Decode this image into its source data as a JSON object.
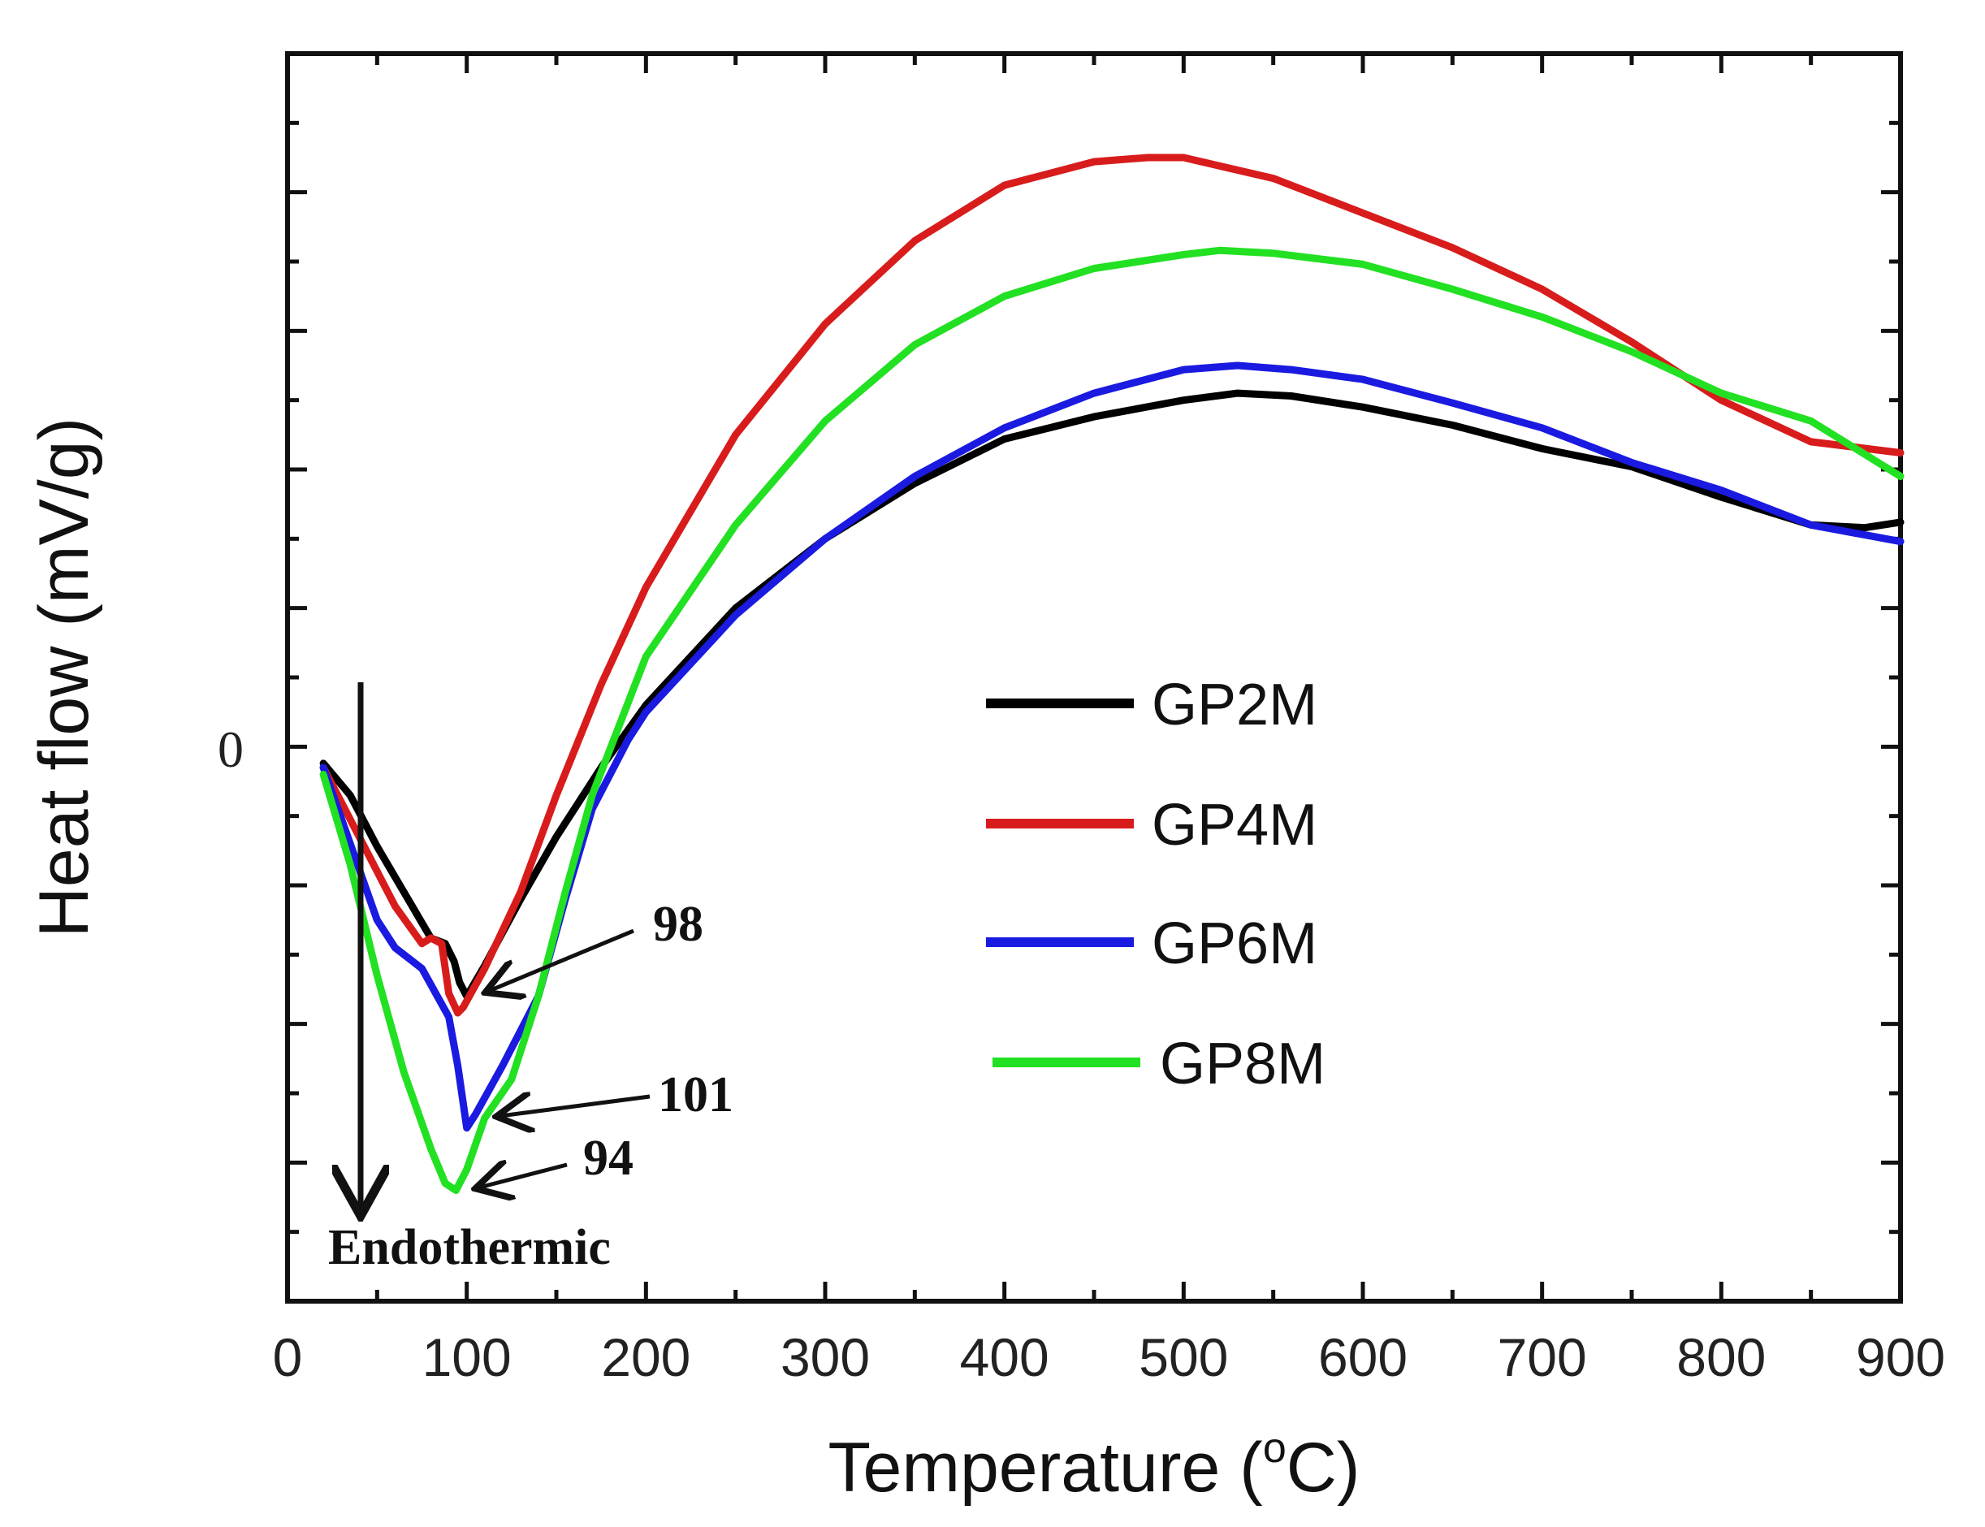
{
  "chart_data": {
    "type": "line",
    "title": "",
    "xlabel": "Temperature (",
    "xlabel_sup": "o",
    "xlabel_unit": "C)",
    "ylabel": "Heat flow (mV/g)",
    "xlim": [
      0,
      900
    ],
    "ylim": [
      -4,
      5
    ],
    "xticks": [
      0,
      100,
      200,
      300,
      400,
      500,
      600,
      700,
      800,
      900
    ],
    "xtick_labels": [
      "0",
      "100",
      "200",
      "300",
      "400",
      "500",
      "600",
      "700",
      "800",
      "900"
    ],
    "y_zero_label": "0",
    "grid": false,
    "legend_position": "center-right",
    "series": [
      {
        "name": "GP2M",
        "color": "#000000",
        "x": [
          20,
          35,
          50,
          65,
          80,
          88,
          93,
          96,
          100,
          110,
          130,
          150,
          175,
          200,
          250,
          300,
          350,
          400,
          450,
          500,
          530,
          560,
          600,
          650,
          700,
          750,
          800,
          850,
          880,
          900
        ],
        "y": [
          -0.12,
          -0.35,
          -0.72,
          -1.05,
          -1.38,
          -1.42,
          -1.55,
          -1.7,
          -1.8,
          -1.58,
          -1.1,
          -0.65,
          -0.15,
          0.3,
          1.0,
          1.5,
          1.9,
          2.22,
          2.38,
          2.5,
          2.55,
          2.53,
          2.45,
          2.32,
          2.15,
          2.02,
          1.8,
          1.6,
          1.58,
          1.62
        ]
      },
      {
        "name": "GP4M",
        "color": "#d81c1c",
        "x": [
          20,
          40,
          60,
          75,
          80,
          86,
          90,
          95,
          98,
          110,
          130,
          150,
          175,
          200,
          250,
          300,
          350,
          400,
          450,
          480,
          500,
          550,
          600,
          650,
          700,
          750,
          800,
          850,
          900
        ],
        "y": [
          -0.15,
          -0.65,
          -1.15,
          -1.42,
          -1.38,
          -1.42,
          -1.78,
          -1.92,
          -1.88,
          -1.6,
          -1.05,
          -0.35,
          0.45,
          1.15,
          2.25,
          3.05,
          3.65,
          4.05,
          4.22,
          4.25,
          4.25,
          4.1,
          3.85,
          3.6,
          3.3,
          2.92,
          2.5,
          2.2,
          2.12
        ]
      },
      {
        "name": "GP6M",
        "color": "#1a1ae0",
        "x": [
          20,
          35,
          50,
          60,
          75,
          90,
          95,
          100,
          105,
          120,
          140,
          155,
          170,
          190,
          200,
          250,
          300,
          350,
          400,
          450,
          500,
          530,
          560,
          600,
          650,
          700,
          750,
          800,
          850,
          900
        ],
        "y": [
          -0.15,
          -0.7,
          -1.25,
          -1.45,
          -1.6,
          -1.95,
          -2.3,
          -2.75,
          -2.65,
          -2.3,
          -1.8,
          -1.1,
          -0.45,
          0.05,
          0.25,
          0.95,
          1.5,
          1.95,
          2.3,
          2.55,
          2.72,
          2.75,
          2.72,
          2.65,
          2.48,
          2.3,
          2.05,
          1.85,
          1.6,
          1.48
        ]
      },
      {
        "name": "GP8M",
        "color": "#22e022",
        "x": [
          20,
          35,
          50,
          65,
          80,
          88,
          94,
          100,
          110,
          125,
          140,
          155,
          170,
          200,
          250,
          300,
          350,
          400,
          450,
          500,
          520,
          550,
          600,
          650,
          700,
          750,
          800,
          850,
          900
        ],
        "y": [
          -0.2,
          -0.85,
          -1.65,
          -2.35,
          -2.9,
          -3.15,
          -3.2,
          -3.05,
          -2.68,
          -2.4,
          -1.8,
          -1.05,
          -0.35,
          0.65,
          1.6,
          2.35,
          2.9,
          3.25,
          3.45,
          3.55,
          3.58,
          3.56,
          3.48,
          3.3,
          3.1,
          2.85,
          2.55,
          2.35,
          1.95
        ]
      }
    ],
    "annotations": [
      {
        "label": "98",
        "x": 98,
        "y": -1.88
      },
      {
        "label": "101",
        "x": 101,
        "y": -2.75
      },
      {
        "label": "94",
        "x": 94,
        "y": -3.2
      }
    ],
    "endothermic_label": "Endothermic"
  }
}
